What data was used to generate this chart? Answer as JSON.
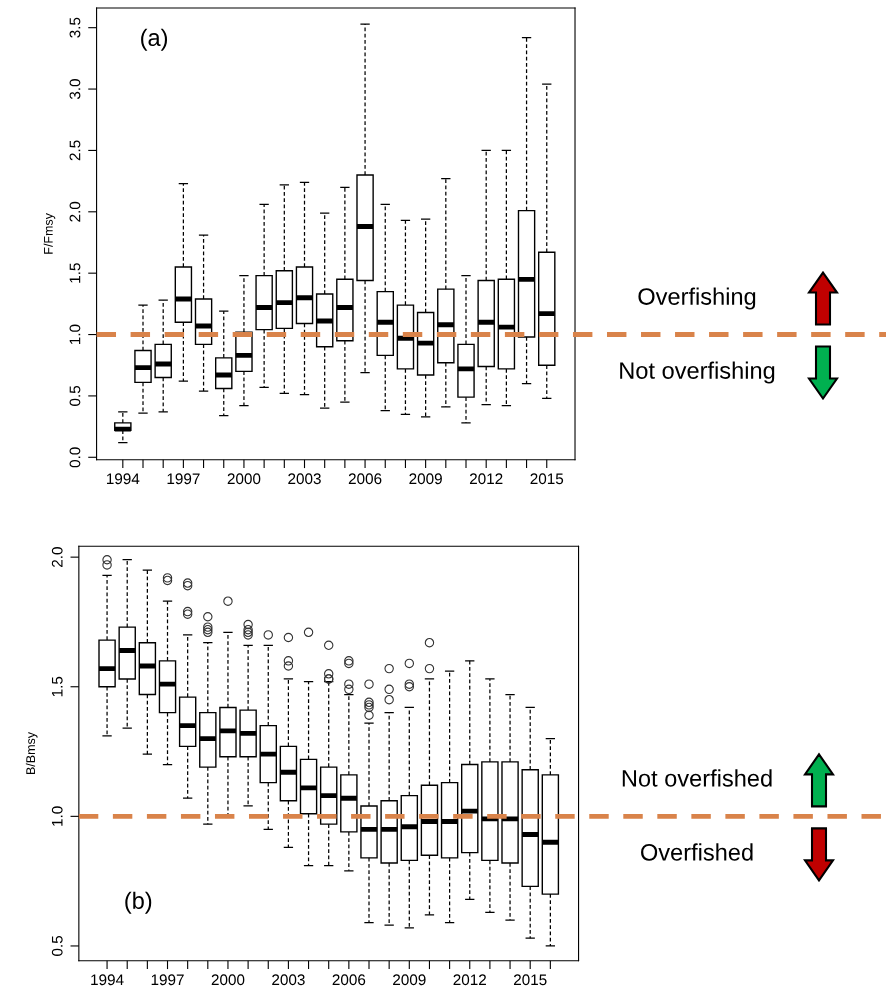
{
  "chart_data": [
    {
      "type": "box",
      "ylabel": "F/Fmsy",
      "annotations": [
        "(a)",
        "Overfishing",
        "Not overfishing"
      ],
      "x": [
        1994,
        1995,
        1996,
        1997,
        1998,
        1999,
        2000,
        2001,
        2002,
        2003,
        2004,
        2005,
        2006,
        2007,
        2008,
        2009,
        2010,
        2011,
        2012,
        2013,
        2014,
        2015
      ],
      "boxes": [
        {
          "low": 0.12,
          "q1": 0.22,
          "median": 0.23,
          "q3": 0.28,
          "high": 0.37
        },
        {
          "low": 0.36,
          "q1": 0.61,
          "median": 0.73,
          "q3": 0.87,
          "high": 1.24
        },
        {
          "low": 0.37,
          "q1": 0.65,
          "median": 0.76,
          "q3": 0.92,
          "high": 1.28
        },
        {
          "low": 0.62,
          "q1": 1.1,
          "median": 1.29,
          "q3": 1.55,
          "high": 2.23
        },
        {
          "low": 0.54,
          "q1": 0.92,
          "median": 1.07,
          "q3": 1.29,
          "high": 1.81
        },
        {
          "low": 0.34,
          "q1": 0.56,
          "median": 0.67,
          "q3": 0.81,
          "high": 1.19
        },
        {
          "low": 0.42,
          "q1": 0.7,
          "median": 0.83,
          "q3": 1.02,
          "high": 1.48
        },
        {
          "low": 0.57,
          "q1": 1.04,
          "median": 1.22,
          "q3": 1.48,
          "high": 2.06
        },
        {
          "low": 0.52,
          "q1": 1.05,
          "median": 1.26,
          "q3": 1.52,
          "high": 2.22
        },
        {
          "low": 0.51,
          "q1": 1.09,
          "median": 1.3,
          "q3": 1.55,
          "high": 2.24
        },
        {
          "low": 0.4,
          "q1": 0.9,
          "median": 1.11,
          "q3": 1.33,
          "high": 1.99
        },
        {
          "low": 0.45,
          "q1": 0.95,
          "median": 1.22,
          "q3": 1.45,
          "high": 2.2
        },
        {
          "low": 0.69,
          "q1": 1.44,
          "median": 1.88,
          "q3": 2.3,
          "high": 3.53
        },
        {
          "low": 0.38,
          "q1": 0.83,
          "median": 1.1,
          "q3": 1.35,
          "high": 2.06
        },
        {
          "low": 0.35,
          "q1": 0.72,
          "median": 0.97,
          "q3": 1.24,
          "high": 1.93
        },
        {
          "low": 0.33,
          "q1": 0.67,
          "median": 0.93,
          "q3": 1.18,
          "high": 1.94
        },
        {
          "low": 0.41,
          "q1": 0.77,
          "median": 1.08,
          "q3": 1.37,
          "high": 2.27
        },
        {
          "low": 0.28,
          "q1": 0.49,
          "median": 0.72,
          "q3": 0.92,
          "high": 1.48
        },
        {
          "low": 0.43,
          "q1": 0.74,
          "median": 1.1,
          "q3": 1.44,
          "high": 2.5
        },
        {
          "low": 0.42,
          "q1": 0.72,
          "median": 1.06,
          "q3": 1.45,
          "high": 2.5
        },
        {
          "low": 0.6,
          "q1": 0.98,
          "median": 1.45,
          "q3": 2.01,
          "high": 3.42
        },
        {
          "low": 0.48,
          "q1": 0.75,
          "median": 1.17,
          "q3": 1.67,
          "high": 3.04
        }
      ],
      "xlim": [
        1992.7,
        2016.4
      ],
      "xticks": [
        1994,
        {
          "value": 1995,
          "label": null
        },
        {
          "value": 1996,
          "label": null
        },
        1997,
        {
          "value": 1998,
          "label": null
        },
        {
          "value": 1999,
          "label": null
        },
        2000,
        {
          "value": 2001,
          "label": null
        },
        {
          "value": 2002,
          "label": null
        },
        2003,
        {
          "value": 2004,
          "label": null
        },
        {
          "value": 2005,
          "label": null
        },
        2006,
        {
          "value": 2007,
          "label": null
        },
        {
          "value": 2008,
          "label": null
        },
        2009,
        {
          "value": 2010,
          "label": null
        },
        {
          "value": 2011,
          "label": null
        },
        2012,
        {
          "value": 2013,
          "label": null
        },
        {
          "value": 2014,
          "label": null
        },
        2015
      ],
      "ylim": [
        -0.02,
        3.66
      ],
      "yticks": [
        {
          "value": 0,
          "label": "0.0"
        },
        0.5,
        {
          "value": 1,
          "label": "1.0"
        },
        1.5,
        {
          "value": 2,
          "label": "2.0"
        },
        2.5,
        {
          "value": 3,
          "label": "3.0"
        },
        3.5
      ],
      "ref_lines": [
        {
          "axis": "y",
          "value": 1.0,
          "color": "#d9834a",
          "line_style": "dashed"
        }
      ]
    },
    {
      "type": "box",
      "ylabel": "B/Bmsy",
      "annotations": [
        "(b)",
        "Not overfished",
        "Overfished"
      ],
      "x": [
        1994,
        1995,
        1996,
        1997,
        1998,
        1999,
        2000,
        2001,
        2002,
        2003,
        2004,
        2005,
        2006,
        2007,
        2008,
        2009,
        2010,
        2011,
        2012,
        2013,
        2014,
        2015,
        2016
      ],
      "boxes": [
        {
          "low": 1.31,
          "q1": 1.5,
          "median": 1.57,
          "q3": 1.68,
          "high": 1.93,
          "outliers": [
            1.99,
            1.97
          ]
        },
        {
          "low": 1.34,
          "q1": 1.53,
          "median": 1.64,
          "q3": 1.73,
          "high": 1.99
        },
        {
          "low": 1.24,
          "q1": 1.47,
          "median": 1.58,
          "q3": 1.67,
          "high": 1.95
        },
        {
          "low": 1.2,
          "q1": 1.4,
          "median": 1.51,
          "q3": 1.6,
          "high": 1.83,
          "outliers": [
            1.92,
            1.91
          ]
        },
        {
          "low": 1.07,
          "q1": 1.27,
          "median": 1.35,
          "q3": 1.46,
          "high": 1.7,
          "outliers": [
            1.9,
            1.89,
            1.79,
            1.78
          ]
        },
        {
          "low": 0.97,
          "q1": 1.19,
          "median": 1.3,
          "q3": 1.4,
          "high": 1.67,
          "outliers": [
            1.77,
            1.73,
            1.72,
            1.71
          ]
        },
        {
          "low": 1.0,
          "q1": 1.23,
          "median": 1.33,
          "q3": 1.42,
          "high": 1.71,
          "outliers": [
            1.83
          ]
        },
        {
          "low": 1.04,
          "q1": 1.23,
          "median": 1.32,
          "q3": 1.41,
          "high": 1.66,
          "outliers": [
            1.74,
            1.72,
            1.71,
            1.7
          ]
        },
        {
          "low": 0.95,
          "q1": 1.13,
          "median": 1.24,
          "q3": 1.35,
          "high": 1.66,
          "outliers": [
            1.7
          ]
        },
        {
          "low": 0.88,
          "q1": 1.06,
          "median": 1.17,
          "q3": 1.27,
          "high": 1.53,
          "outliers": [
            1.69,
            1.6,
            1.58
          ]
        },
        {
          "low": 0.81,
          "q1": 1.01,
          "median": 1.11,
          "q3": 1.22,
          "high": 1.52,
          "outliers": [
            1.71
          ]
        },
        {
          "low": 0.81,
          "q1": 0.97,
          "median": 1.08,
          "q3": 1.19,
          "high": 1.52,
          "outliers": [
            1.66,
            1.55,
            1.53,
            1.53
          ]
        },
        {
          "low": 0.79,
          "q1": 0.94,
          "median": 1.07,
          "q3": 1.16,
          "high": 1.47,
          "outliers": [
            1.6,
            1.59,
            1.51,
            1.49
          ]
        },
        {
          "low": 0.59,
          "q1": 0.84,
          "median": 0.95,
          "q3": 1.04,
          "high": 1.36,
          "outliers": [
            1.51,
            1.44,
            1.43,
            1.42,
            1.39
          ]
        },
        {
          "low": 0.58,
          "q1": 0.82,
          "median": 0.95,
          "q3": 1.06,
          "high": 1.4,
          "outliers": [
            1.57,
            1.49,
            1.45
          ]
        },
        {
          "low": 0.57,
          "q1": 0.83,
          "median": 0.96,
          "q3": 1.08,
          "high": 1.42,
          "outliers": [
            1.59,
            1.51,
            1.5
          ]
        },
        {
          "low": 0.62,
          "q1": 0.85,
          "median": 0.98,
          "q3": 1.12,
          "high": 1.53,
          "outliers": [
            1.67,
            1.57
          ]
        },
        {
          "low": 0.59,
          "q1": 0.84,
          "median": 0.98,
          "q3": 1.13,
          "high": 1.56
        },
        {
          "low": 0.68,
          "q1": 0.86,
          "median": 1.02,
          "q3": 1.2,
          "high": 1.6
        },
        {
          "low": 0.63,
          "q1": 0.83,
          "median": 0.99,
          "q3": 1.21,
          "high": 1.53
        },
        {
          "low": 0.6,
          "q1": 0.82,
          "median": 0.99,
          "q3": 1.21,
          "high": 1.47
        },
        {
          "low": 0.53,
          "q1": 0.73,
          "median": 0.93,
          "q3": 1.18,
          "high": 1.42
        },
        {
          "low": 0.5,
          "q1": 0.7,
          "median": 0.9,
          "q3": 1.16,
          "high": 1.3
        }
      ],
      "xlim": [
        1992.6,
        2017.4
      ],
      "xticks": [
        1994,
        {
          "value": 1995,
          "label": null
        },
        {
          "value": 1996,
          "label": null
        },
        1997,
        {
          "value": 1998,
          "label": null
        },
        {
          "value": 1999,
          "label": null
        },
        2000,
        {
          "value": 2001,
          "label": null
        },
        {
          "value": 2002,
          "label": null
        },
        2003,
        {
          "value": 2004,
          "label": null
        },
        {
          "value": 2005,
          "label": null
        },
        2006,
        {
          "value": 2007,
          "label": null
        },
        {
          "value": 2008,
          "label": null
        },
        2009,
        {
          "value": 2010,
          "label": null
        },
        {
          "value": 2011,
          "label": null
        },
        2012,
        {
          "value": 2013,
          "label": null
        },
        {
          "value": 2014,
          "label": null
        },
        2015,
        {
          "value": 2016,
          "label": null
        }
      ],
      "ylim": [
        0.443,
        2.042
      ],
      "yticks": [
        0.5,
        {
          "value": 1,
          "label": "1.0"
        },
        1.5,
        {
          "value": 2,
          "label": "2.0"
        }
      ],
      "ref_lines": [
        {
          "axis": "y",
          "value": 1.0,
          "color": "#d9834a",
          "line_style": "dashed"
        }
      ]
    }
  ]
}
